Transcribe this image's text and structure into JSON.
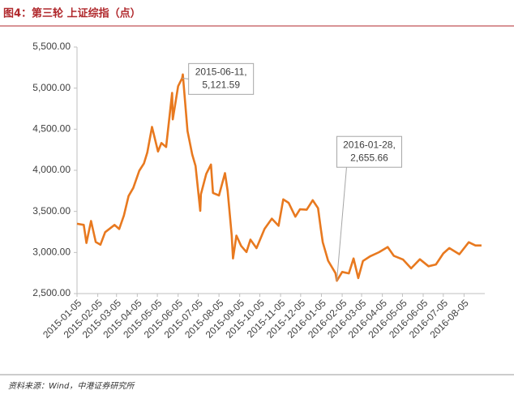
{
  "chart_data": {
    "type": "line",
    "title": "图4：第三轮 上证综指（点）",
    "source": "资料来源：Wind，中港证券研究所",
    "color": "#e8791f",
    "x": [
      "2015-01-05",
      "2015-01-15",
      "2015-01-19",
      "2015-01-26",
      "2015-02-02",
      "2015-02-09",
      "2015-02-16",
      "2015-03-02",
      "2015-03-09",
      "2015-03-16",
      "2015-03-23",
      "2015-03-30",
      "2015-04-08",
      "2015-04-15",
      "2015-04-20",
      "2015-04-27",
      "2015-05-06",
      "2015-05-11",
      "2015-05-18",
      "2015-05-27",
      "2015-05-28",
      "2015-06-05",
      "2015-06-11",
      "2015-06-12",
      "2015-06-19",
      "2015-06-26",
      "2015-07-01",
      "2015-07-08",
      "2015-07-09",
      "2015-07-17",
      "2015-07-24",
      "2015-07-27",
      "2015-08-05",
      "2015-08-14",
      "2015-08-18",
      "2015-08-24",
      "2015-08-26",
      "2015-08-31",
      "2015-09-07",
      "2015-09-15",
      "2015-09-21",
      "2015-09-30",
      "2015-10-12",
      "2015-10-23",
      "2015-11-02",
      "2015-11-09",
      "2015-11-17",
      "2015-11-27",
      "2015-12-04",
      "2015-12-14",
      "2015-12-23",
      "2015-12-31",
      "2016-01-04",
      "2016-01-07",
      "2016-01-15",
      "2016-01-26",
      "2016-01-28",
      "2016-02-05",
      "2016-02-15",
      "2016-02-22",
      "2016-02-29",
      "2016-03-07",
      "2016-03-18",
      "2016-03-31",
      "2016-04-13",
      "2016-04-22",
      "2016-05-06",
      "2016-05-18",
      "2016-05-31",
      "2016-06-13",
      "2016-06-24",
      "2016-07-05",
      "2016-07-14",
      "2016-07-29",
      "2016-08-12",
      "2016-08-22",
      "2016-08-31"
    ],
    "values": [
      3350,
      3336,
      3116,
      3383,
      3128,
      3095,
      3247,
      3336,
      3286,
      3449,
      3687,
      3786,
      3995,
      4085,
      4217,
      4528,
      4229,
      4333,
      4283,
      4941,
      4620,
      5023,
      5121.59,
      5166,
      4478,
      4192,
      4053,
      3507,
      3709,
      3957,
      4070,
      3725,
      3694,
      3965,
      3748,
      3210,
      2927,
      3206,
      3080,
      3005,
      3156,
      3053,
      3287,
      3412,
      3325,
      3647,
      3604,
      3436,
      3525,
      3520,
      3636,
      3539,
      3296,
      3125,
      2900,
      2749,
      2655.66,
      2763,
      2746,
      2927,
      2688,
      2897,
      2955,
      3003,
      3066,
      2960,
      2913,
      2807,
      2917,
      2833,
      2854,
      2988,
      3054,
      2979,
      3125,
      3085,
      3085
    ],
    "xlim": [
      "2015-01-05",
      "2016-09-05"
    ],
    "xticks": [
      "2015-01-05",
      "2015-02-05",
      "2015-03-05",
      "2015-04-05",
      "2015-05-05",
      "2015-06-05",
      "2015-07-05",
      "2015-08-05",
      "2015-09-05",
      "2015-10-05",
      "2015-11-05",
      "2015-12-05",
      "2016-01-05",
      "2016-02-05",
      "2016-03-05",
      "2016-04-05",
      "2016-05-05",
      "2016-06-05",
      "2016-07-05",
      "2016-08-05"
    ],
    "ylim": [
      2500,
      5500
    ],
    "yticks": [
      {
        "value": 2500,
        "label": "2,500.00"
      },
      {
        "value": 3000,
        "label": "3,000.00"
      },
      {
        "value": 3500,
        "label": "3,500.00"
      },
      {
        "value": 4000,
        "label": "4,000.00"
      },
      {
        "value": 4500,
        "label": "4,500.00"
      },
      {
        "value": 5000,
        "label": "5,000.00"
      },
      {
        "value": 5500,
        "label": "5,500.00"
      }
    ],
    "annotations": [
      {
        "x": "2015-06-11",
        "y": 5121.59,
        "lines": [
          "2015-06-11,",
          "5,121.59"
        ]
      },
      {
        "x": "2016-01-28",
        "y": 2655.66,
        "lines": [
          "2016-01-28,",
          "2,655.66"
        ]
      }
    ]
  }
}
